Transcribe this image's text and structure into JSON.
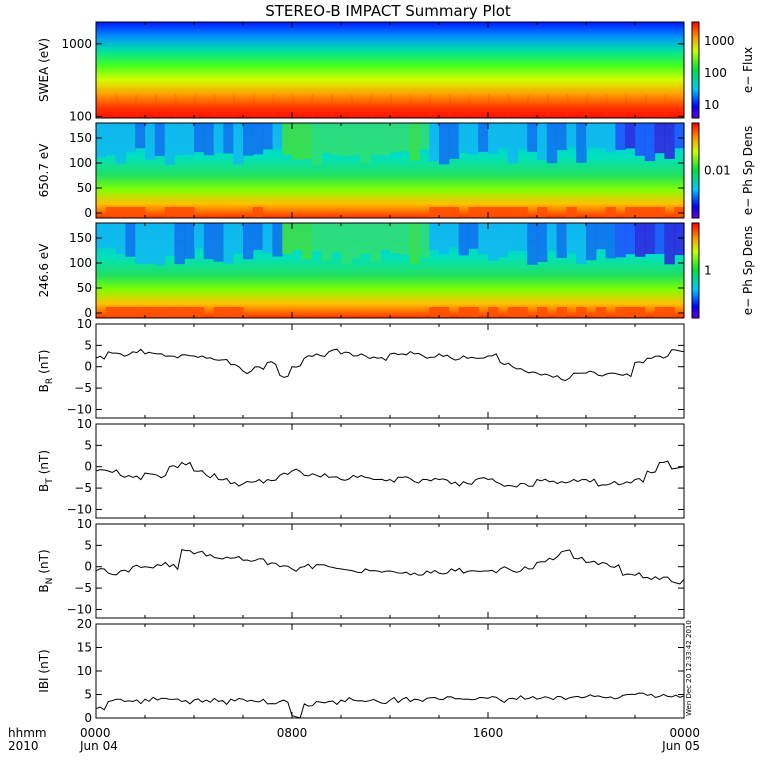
{
  "title": "STEREO-B IMPACT Summary Plot",
  "stamp": "Wen Dec 20 12:33:42 2010",
  "x_axis": {
    "left_labels": [
      "hhmm",
      "2010"
    ],
    "ticks": [
      {
        "time": "0000",
        "date": "Jun 04",
        "hours": 0
      },
      {
        "time": "0800",
        "date": "",
        "hours": 8
      },
      {
        "time": "1600",
        "date": "",
        "hours": 16
      },
      {
        "time": "0000",
        "date": "Jun 05",
        "hours": 24
      }
    ],
    "range_hours": [
      0,
      24
    ]
  },
  "panels": [
    {
      "id": "swea",
      "type": "heatmap",
      "ylabel": "SWEA (eV)",
      "ylim": [
        95,
        2000
      ],
      "log": true,
      "yticks": [
        "1000",
        "100"
      ],
      "ytick_values": [
        1000,
        100
      ],
      "colorbar": {
        "label": "e− Flux",
        "ticks": [
          "1000",
          "100",
          "10"
        ]
      }
    },
    {
      "id": "pad650",
      "type": "heatmap",
      "ylabel": "650.7 eV",
      "ylim": [
        -10,
        180
      ],
      "yticks": [
        "150",
        "100",
        "50",
        "0"
      ],
      "ytick_values": [
        150,
        100,
        50,
        0
      ],
      "colorbar": {
        "label": "e− Ph Sp Dens",
        "ticks": [
          "0.01"
        ]
      }
    },
    {
      "id": "pad246",
      "type": "heatmap",
      "ylabel": "246.6 eV",
      "ylim": [
        -10,
        180
      ],
      "yticks": [
        "150",
        "100",
        "50",
        "0"
      ],
      "ytick_values": [
        150,
        100,
        50,
        0
      ],
      "colorbar": {
        "label": "e− Ph Sp Dens",
        "ticks": [
          "1"
        ]
      }
    },
    {
      "id": "br",
      "type": "line",
      "ylabel": "B",
      "sub": "R",
      "unit": "(nT)",
      "ylim": [
        -12,
        10
      ],
      "yticks": [
        "10",
        "5",
        "0",
        "−5",
        "−10"
      ],
      "ytick_values": [
        10,
        5,
        0,
        -5,
        -10
      ]
    },
    {
      "id": "bt",
      "type": "line",
      "ylabel": "B",
      "sub": "T",
      "unit": "(nT)",
      "ylim": [
        -12,
        10
      ],
      "yticks": [
        "10",
        "5",
        "0",
        "−5",
        "−10"
      ],
      "ytick_values": [
        10,
        5,
        0,
        -5,
        -10
      ]
    },
    {
      "id": "bn",
      "type": "line",
      "ylabel": "B",
      "sub": "N",
      "unit": "(nT)",
      "ylim": [
        -12,
        10
      ],
      "yticks": [
        "10",
        "5",
        "0",
        "−5",
        "−10"
      ],
      "ytick_values": [
        10,
        5,
        0,
        -5,
        -10
      ]
    },
    {
      "id": "bmag",
      "type": "line",
      "ylabel": "IBI (nT)",
      "ylim": [
        0,
        20
      ],
      "yticks": [
        "20",
        "15",
        "10",
        "5",
        "0"
      ],
      "ytick_values": [
        20,
        15,
        10,
        5,
        0
      ]
    }
  ],
  "chart_data": [
    {
      "type": "line",
      "ylabel": "BR (nT)",
      "x": [
        0,
        0.5,
        1,
        1.5,
        2,
        2.5,
        3,
        3.5,
        4,
        4.5,
        5,
        5.5,
        6,
        6.5,
        7,
        7.5,
        8,
        8.5,
        9,
        9.5,
        10,
        10.5,
        11,
        11.5,
        12,
        12.5,
        13,
        13.5,
        14,
        14.5,
        15,
        15.5,
        16,
        16.5,
        17,
        17.5,
        18,
        18.5,
        19,
        19.5,
        20,
        20.5,
        21,
        21.5,
        22,
        22.5,
        23,
        23.5,
        24
      ],
      "y": [
        2,
        3.5,
        3,
        3.5,
        3,
        3,
        2.5,
        2.8,
        2.5,
        2,
        1.5,
        0.5,
        -1,
        0,
        1,
        -2,
        0,
        2,
        3,
        3.5,
        3,
        2.5,
        2.5,
        2,
        3,
        3,
        3,
        2,
        3,
        2,
        2.5,
        2,
        2.5,
        1,
        0,
        -1,
        -1.5,
        -2,
        -3,
        -1.5,
        -1.5,
        -2,
        -1.5,
        -2,
        1,
        2,
        2.5,
        4,
        3.5
      ]
    },
    {
      "type": "line",
      "ylabel": "BT (nT)",
      "x": [
        0,
        0.5,
        1,
        1.5,
        2,
        2.5,
        3,
        3.5,
        4,
        4.5,
        5,
        5.5,
        6,
        6.5,
        7,
        7.5,
        8,
        8.5,
        9,
        9.5,
        10,
        10.5,
        11,
        11.5,
        12,
        12.5,
        13,
        13.5,
        14,
        14.5,
        15,
        15.5,
        16,
        16.5,
        17,
        17.5,
        18,
        18.5,
        19,
        19.5,
        20,
        20.5,
        21,
        21.5,
        22,
        22.5,
        23,
        23.5,
        24
      ],
      "y": [
        -1,
        -1,
        -2,
        -2.5,
        -1.5,
        -2,
        0,
        1,
        -1,
        -2,
        -3,
        -4,
        -4,
        -3.5,
        -3,
        -2,
        -1,
        -2,
        -2,
        -2.5,
        -3,
        -2,
        -2.5,
        -3,
        -3,
        -2.5,
        -3.5,
        -3,
        -3,
        -4,
        -3.5,
        -3,
        -3,
        -4,
        -4.5,
        -4,
        -3,
        -3.5,
        -3.5,
        -3,
        -3,
        -4.5,
        -4,
        -4,
        -3,
        -1,
        1,
        -0.5,
        0
      ]
    },
    {
      "type": "line",
      "ylabel": "BN (nT)",
      "x": [
        0,
        0.5,
        1,
        1.5,
        2,
        2.5,
        3,
        3.5,
        4,
        4.5,
        5,
        5.5,
        6,
        6.5,
        7,
        7.5,
        8,
        8.5,
        9,
        9.5,
        10,
        10.5,
        11,
        11.5,
        12,
        12.5,
        13,
        13.5,
        14,
        14.5,
        15,
        15.5,
        16,
        16.5,
        17,
        17.5,
        18,
        18.5,
        19,
        19.5,
        20,
        20.5,
        21,
        21.5,
        22,
        22.5,
        23,
        23.5,
        24
      ],
      "y": [
        -1,
        -1.5,
        -1,
        0,
        0,
        0.5,
        0,
        4,
        3,
        2.5,
        2,
        2,
        1.5,
        1.5,
        0.5,
        0,
        -0.5,
        0,
        0.5,
        0,
        -0.5,
        -1,
        -0.5,
        -1,
        -1,
        -1.5,
        -1.5,
        -1,
        -1.5,
        -0.5,
        -1.5,
        -1,
        -1,
        -0.5,
        -1,
        0,
        1,
        2,
        3.5,
        2,
        1,
        0.5,
        0,
        -2,
        -2,
        -2.5,
        -3,
        -3.5,
        -3
      ]
    },
    {
      "type": "line",
      "ylabel": "IBI (nT)",
      "x": [
        0,
        0.5,
        1,
        1.5,
        2,
        2.5,
        3,
        3.5,
        4,
        4.5,
        5,
        5.5,
        6,
        6.5,
        7,
        7.5,
        8,
        8.5,
        9,
        9.5,
        10,
        10.5,
        11,
        11.5,
        12,
        12.5,
        13,
        13.5,
        14,
        14.5,
        15,
        15.5,
        16,
        16.5,
        17,
        17.5,
        18,
        18.5,
        19,
        19.5,
        20,
        20.5,
        21,
        21.5,
        22,
        22.5,
        23,
        23.5,
        24
      ],
      "y": [
        2,
        3.5,
        4,
        3.5,
        4,
        3.8,
        4,
        3.5,
        3.8,
        3.8,
        3.5,
        4,
        4,
        3.5,
        3,
        3.5,
        0.5,
        3,
        3.5,
        3.5,
        3.8,
        3.8,
        3.5,
        3.5,
        3.8,
        4,
        4,
        4.2,
        4,
        4.5,
        4,
        4,
        4.2,
        3.8,
        4.2,
        4,
        4,
        4.3,
        4.5,
        4.5,
        4.5,
        4.7,
        4.5,
        4.8,
        5,
        4.8,
        4.6,
        4.5,
        4.7
      ]
    }
  ]
}
